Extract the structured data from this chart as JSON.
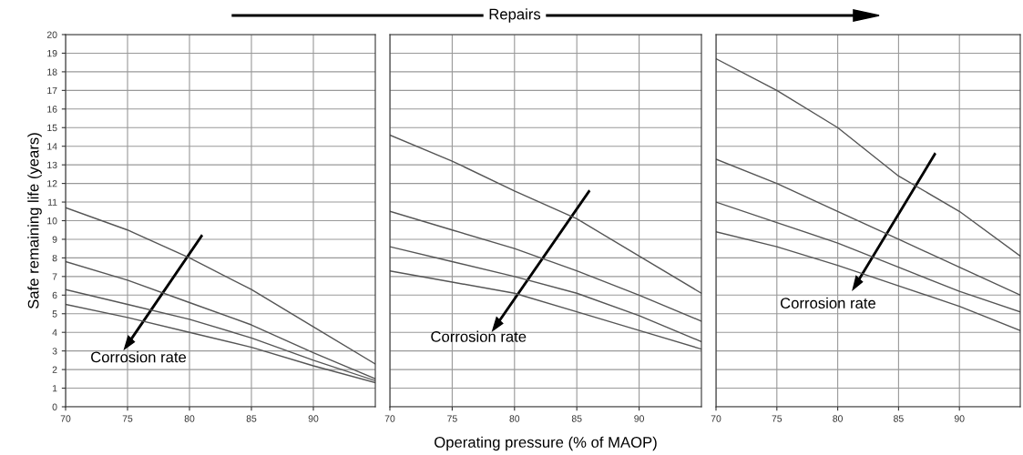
{
  "chart_data": [
    {
      "type": "line",
      "ylabel": "Safe remaining life (years)",
      "x": [
        70,
        75,
        80,
        85,
        90,
        95
      ],
      "xlim": [
        70,
        95
      ],
      "xticks": [
        70,
        75,
        80,
        85,
        90
      ],
      "ylim": [
        0,
        20
      ],
      "yticks": [
        0,
        1,
        2,
        3,
        4,
        5,
        6,
        7,
        8,
        9,
        10,
        11,
        12,
        13,
        14,
        15,
        16,
        17,
        18,
        19,
        20
      ],
      "grid": true,
      "annotations": [
        "Corrosion rate"
      ],
      "series": [
        {
          "color": "#555555",
          "values": [
            10.7,
            9.5,
            8.0,
            6.3,
            4.3,
            2.3
          ]
        },
        {
          "color": "#555555",
          "values": [
            7.8,
            6.8,
            5.6,
            4.4,
            2.9,
            1.5
          ]
        },
        {
          "color": "#555555",
          "values": [
            6.3,
            5.5,
            4.7,
            3.7,
            2.5,
            1.4
          ]
        },
        {
          "color": "#555555",
          "values": [
            5.5,
            4.8,
            4.0,
            3.2,
            2.2,
            1.3
          ]
        }
      ]
    },
    {
      "type": "line",
      "xlabel": "Operating pressure (% of MAOP)",
      "x": [
        70,
        75,
        80,
        85,
        90,
        95
      ],
      "xlim": [
        70,
        95
      ],
      "xticks": [
        70,
        75,
        80,
        85,
        90
      ],
      "ylim": [
        0,
        20
      ],
      "yticks": [
        0,
        1,
        2,
        3,
        4,
        5,
        6,
        7,
        8,
        9,
        10,
        11,
        12,
        13,
        14,
        15,
        16,
        17,
        18,
        19,
        20
      ],
      "grid": true,
      "tick_labels": "x",
      "annotations": [
        "Corrosion rate",
        "Repairs"
      ],
      "series": [
        {
          "color": "#555555",
          "values": [
            14.6,
            13.2,
            11.6,
            10.1,
            8.1,
            6.1
          ]
        },
        {
          "color": "#555555",
          "values": [
            10.5,
            9.5,
            8.5,
            7.3,
            6.0,
            4.6
          ]
        },
        {
          "color": "#555555",
          "values": [
            8.6,
            7.8,
            7.0,
            6.1,
            4.9,
            3.5
          ]
        },
        {
          "color": "#555555",
          "values": [
            7.3,
            6.7,
            6.1,
            5.1,
            4.1,
            3.1
          ]
        }
      ]
    },
    {
      "type": "line",
      "x": [
        70,
        75,
        80,
        85,
        90,
        95
      ],
      "xlim": [
        70,
        95
      ],
      "xticks": [
        70,
        75,
        80,
        85,
        90
      ],
      "ylim": [
        0,
        20
      ],
      "yticks": [
        0,
        1,
        2,
        3,
        4,
        5,
        6,
        7,
        8,
        9,
        10,
        11,
        12,
        13,
        14,
        15,
        16,
        17,
        18,
        19,
        20
      ],
      "grid": true,
      "tick_labels": "x",
      "annotations": [
        "Corrosion rate"
      ],
      "series": [
        {
          "color": "#555555",
          "values": [
            18.7,
            17.0,
            15.0,
            12.4,
            10.5,
            8.1
          ]
        },
        {
          "color": "#555555",
          "values": [
            13.3,
            12.0,
            10.5,
            9.0,
            7.5,
            6.0
          ]
        },
        {
          "color": "#555555",
          "values": [
            11.0,
            9.9,
            8.8,
            7.5,
            6.2,
            5.1
          ]
        },
        {
          "color": "#555555",
          "values": [
            9.4,
            8.6,
            7.6,
            6.5,
            5.4,
            4.1
          ]
        }
      ]
    }
  ]
}
